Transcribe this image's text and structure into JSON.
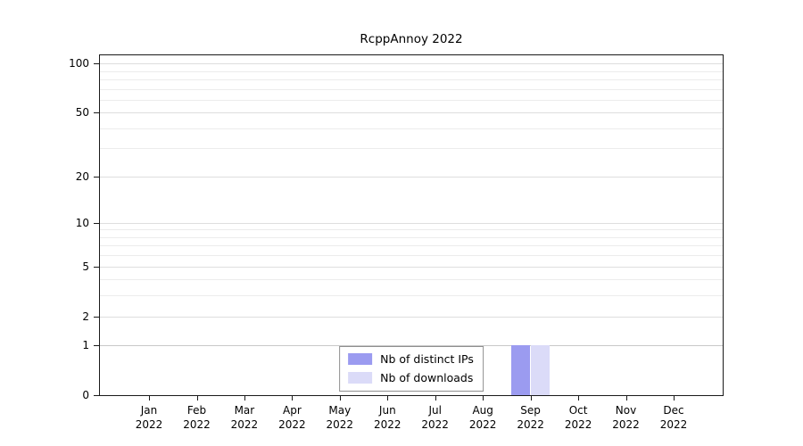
{
  "chart_data": {
    "type": "bar",
    "title": "RcppAnnoy 2022",
    "categories": [
      "Jan",
      "Feb",
      "Mar",
      "Apr",
      "May",
      "Jun",
      "Jul",
      "Aug",
      "Sep",
      "Oct",
      "Nov",
      "Dec"
    ],
    "year_label": "2022",
    "series": [
      {
        "name": "Nb of distinct IPs",
        "color": "#9b9bf0",
        "values": [
          0,
          0,
          0,
          0,
          0,
          0,
          0,
          0,
          1,
          0,
          0,
          0
        ]
      },
      {
        "name": "Nb of downloads",
        "color": "#dbdbf8",
        "values": [
          0,
          0,
          0,
          0,
          0,
          0,
          0,
          0,
          1,
          0,
          0,
          0
        ]
      }
    ],
    "yscale": "log1p",
    "yticks": [
      0,
      1,
      2,
      5,
      10,
      20,
      50,
      100
    ],
    "minor_yticks": [
      3,
      4,
      6,
      7,
      8,
      9,
      30,
      40,
      60,
      70,
      80,
      90
    ],
    "ylim": [
      0,
      112
    ],
    "grid": "horizontal",
    "legend_position": "bottom-center"
  }
}
